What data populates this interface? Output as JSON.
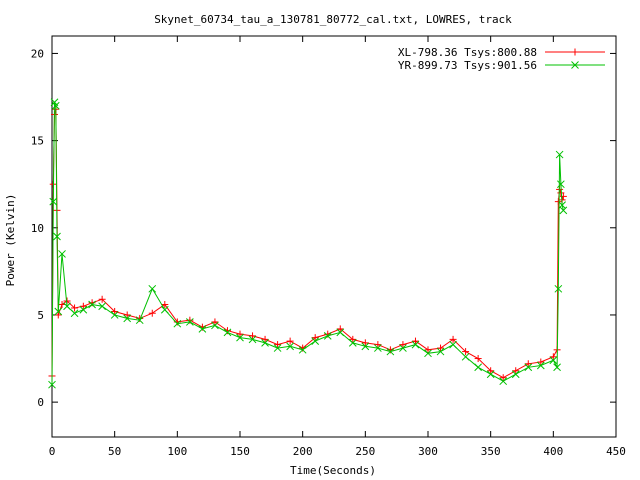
{
  "chart_data": {
    "type": "line",
    "title": "Skynet_60734_tau_a_130781_80772_cal.txt, LOWRES, track",
    "xlabel": "Time(Seconds)",
    "ylabel": "Power (Kelvin)",
    "xlim": [
      0,
      450
    ],
    "ylim": [
      -2,
      21
    ],
    "xticks": [
      0,
      50,
      100,
      150,
      200,
      250,
      300,
      350,
      400,
      450
    ],
    "yticks": [
      0,
      5,
      10,
      15,
      20
    ],
    "legend_position": "top-right",
    "grid": false,
    "series": [
      {
        "name": "XL-798.36 Tsys:800.88",
        "color": "#ff0000",
        "marker": "plus",
        "x": [
          0,
          1,
          2,
          3,
          4,
          5,
          8,
          12,
          18,
          25,
          32,
          40,
          50,
          60,
          70,
          80,
          90,
          100,
          110,
          120,
          130,
          140,
          150,
          160,
          170,
          180,
          190,
          200,
          210,
          220,
          230,
          240,
          250,
          260,
          270,
          280,
          290,
          300,
          310,
          320,
          330,
          340,
          350,
          360,
          370,
          380,
          390,
          400,
          403,
          404,
          405,
          406,
          407,
          408
        ],
        "y": [
          1.5,
          12.5,
          16.5,
          16.8,
          11,
          5,
          5.6,
          5.8,
          5.4,
          5.5,
          5.7,
          5.9,
          5.2,
          5.0,
          4.8,
          5.1,
          5.6,
          4.6,
          4.7,
          4.3,
          4.6,
          4.1,
          3.9,
          3.8,
          3.6,
          3.3,
          3.5,
          3.1,
          3.7,
          3.9,
          4.2,
          3.6,
          3.4,
          3.3,
          3.0,
          3.3,
          3.5,
          3.0,
          3.1,
          3.6,
          2.9,
          2.5,
          1.8,
          1.4,
          1.8,
          2.2,
          2.3,
          2.6,
          3.0,
          11.5,
          12.2,
          12.0,
          11.6,
          11.8
        ]
      },
      {
        "name": "YR-899.73 Tsys:901.56",
        "color": "#00c000",
        "marker": "cross",
        "x": [
          0,
          1,
          2,
          3,
          4,
          5,
          8,
          12,
          18,
          25,
          32,
          40,
          50,
          60,
          70,
          80,
          90,
          100,
          110,
          120,
          130,
          140,
          150,
          160,
          170,
          180,
          190,
          200,
          210,
          220,
          230,
          240,
          250,
          260,
          270,
          280,
          290,
          300,
          310,
          320,
          330,
          340,
          350,
          360,
          370,
          380,
          390,
          400,
          403,
          404,
          405,
          406,
          407,
          408
        ],
        "y": [
          1.0,
          11.5,
          17.2,
          17.0,
          9.5,
          5.2,
          8.5,
          5.5,
          5.1,
          5.3,
          5.6,
          5.5,
          5.0,
          4.8,
          4.7,
          6.5,
          5.3,
          4.5,
          4.6,
          4.2,
          4.4,
          4.0,
          3.7,
          3.6,
          3.4,
          3.1,
          3.2,
          3.0,
          3.5,
          3.8,
          4.0,
          3.4,
          3.2,
          3.1,
          2.9,
          3.1,
          3.3,
          2.8,
          2.9,
          3.3,
          2.6,
          2.0,
          1.6,
          1.2,
          1.6,
          2.0,
          2.1,
          2.4,
          2.0,
          6.5,
          14.2,
          12.5,
          11.3,
          11.0
        ]
      }
    ]
  }
}
